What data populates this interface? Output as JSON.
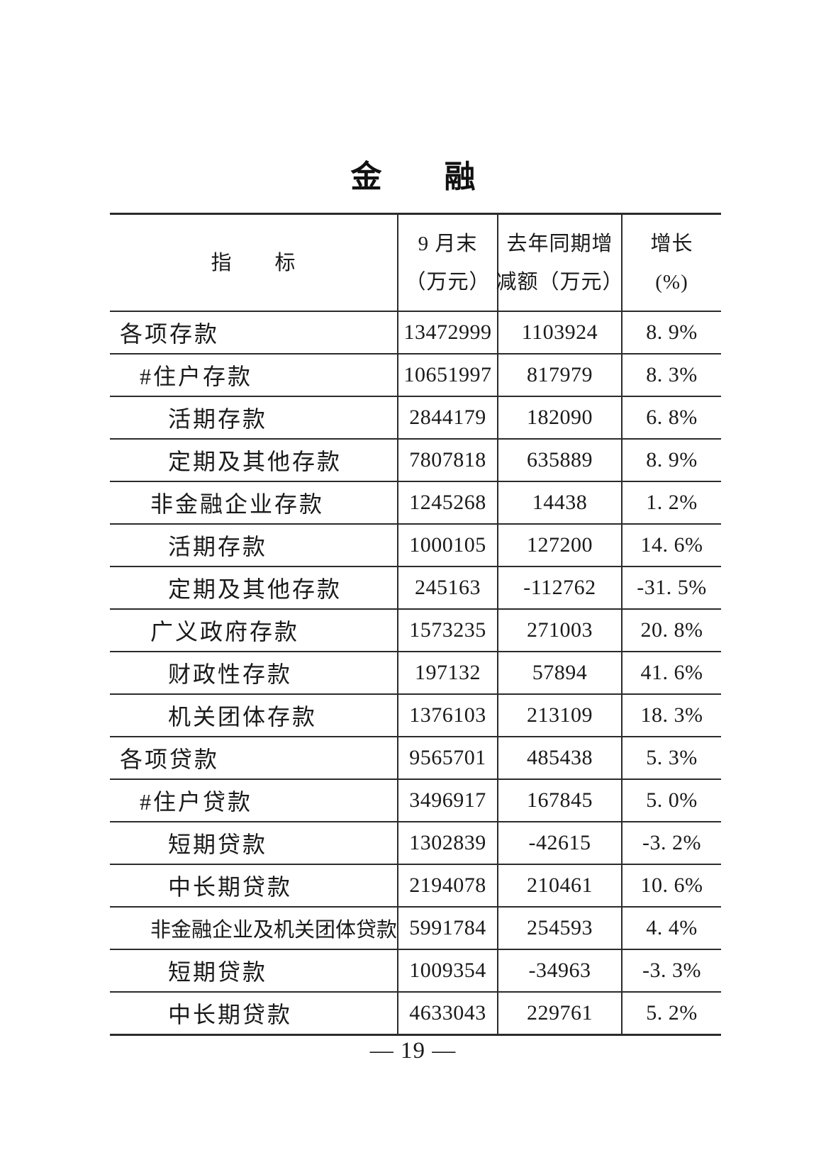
{
  "page": {
    "title": "金　　融",
    "footer": "— 19 —"
  },
  "table": {
    "header": {
      "indicator": "指　　标",
      "col2_line1": "9 月末",
      "col2_line2": "（万元）",
      "col3_line1": "去年同期增",
      "col3_line2": "减额（万元）",
      "col4_line1": "增长",
      "col4_line2": "(%)"
    },
    "rows": [
      {
        "indicator": "各项存款",
        "indent": 0,
        "value": "13472999",
        "change": "1103924",
        "growth": "8. 9%"
      },
      {
        "indicator": "#住户存款",
        "indent": 1,
        "value": "10651997",
        "change": "817979",
        "growth": "8. 3%"
      },
      {
        "indicator": "活期存款",
        "indent": 2,
        "value": "2844179",
        "change": "182090",
        "growth": "6. 8%"
      },
      {
        "indicator": "定期及其他存款",
        "indent": 2,
        "value": "7807818",
        "change": "635889",
        "growth": "8. 9%"
      },
      {
        "indicator": "非金融企业存款",
        "indent": 1,
        "value": "1245268",
        "change": "14438",
        "growth": "1. 2%"
      },
      {
        "indicator": "活期存款",
        "indent": 2,
        "value": "1000105",
        "change": "127200",
        "growth": "14. 6%"
      },
      {
        "indicator": "定期及其他存款",
        "indent": 2,
        "value": "245163",
        "change": "-112762",
        "growth": "-31. 5%"
      },
      {
        "indicator": "广义政府存款",
        "indent": 1,
        "value": "1573235",
        "change": "271003",
        "growth": "20. 8%"
      },
      {
        "indicator": "财政性存款",
        "indent": 2,
        "value": "197132",
        "change": "57894",
        "growth": "41. 6%"
      },
      {
        "indicator": "机关团体存款",
        "indent": 2,
        "value": "1376103",
        "change": "213109",
        "growth": "18. 3%"
      },
      {
        "indicator": "各项贷款",
        "indent": 0,
        "value": "9565701",
        "change": "485438",
        "growth": "5. 3%"
      },
      {
        "indicator": "#住户贷款",
        "indent": 1,
        "value": "3496917",
        "change": "167845",
        "growth": "5. 0%"
      },
      {
        "indicator": "短期贷款",
        "indent": 2,
        "value": "1302839",
        "change": "-42615",
        "growth": "-3. 2%"
      },
      {
        "indicator": "中长期贷款",
        "indent": 2,
        "value": "2194078",
        "change": "210461",
        "growth": "10. 6%"
      },
      {
        "indicator": "非金融企业及机关团体贷款",
        "indent": 1,
        "value": "5991784",
        "change": "254593",
        "growth": "4. 4%"
      },
      {
        "indicator": "短期贷款",
        "indent": 2,
        "value": "1009354",
        "change": "-34963",
        "growth": "-3. 3%"
      },
      {
        "indicator": "中长期贷款",
        "indent": 2,
        "value": "4633043",
        "change": "229761",
        "growth": "5. 2%"
      }
    ]
  }
}
